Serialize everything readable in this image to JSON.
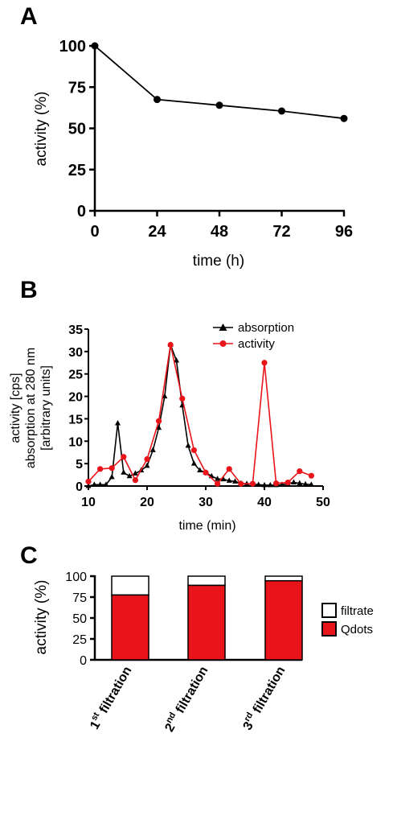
{
  "panels": {
    "a": {
      "letter": "A"
    },
    "b": {
      "letter": "B"
    },
    "c": {
      "letter": "C"
    }
  },
  "chart_data": [
    {
      "panel": "A",
      "type": "line",
      "xlabel": "time (h)",
      "ylabel": "activity (%)",
      "xlim": [
        0,
        96
      ],
      "ylim": [
        0,
        100
      ],
      "xticks": [
        0,
        24,
        48,
        72,
        96
      ],
      "yticks": [
        0,
        25,
        50,
        75,
        100
      ],
      "grid": false,
      "series": [
        {
          "x": [
            0,
            24,
            48,
            72,
            96
          ],
          "y": [
            100,
            67.5,
            64,
            60.5,
            56
          ],
          "color": "#000000",
          "marker": "circle"
        }
      ]
    },
    {
      "panel": "B",
      "type": "line",
      "xlabel": "time (min)",
      "ylabel_lines": [
        "activity [cps]",
        "absorption at 280 nm",
        "[arbitrary units]"
      ],
      "xlim": [
        10,
        50
      ],
      "ylim": [
        0,
        35
      ],
      "xticks": [
        10,
        20,
        30,
        40,
        50
      ],
      "yticks": [
        0,
        5,
        10,
        15,
        20,
        25,
        30,
        35
      ],
      "grid": false,
      "legend_position": "top-right",
      "series": [
        {
          "name": "absorption",
          "color": "#000000",
          "marker": "triangle",
          "x": [
            10,
            11,
            12,
            13,
            14,
            15,
            16,
            17,
            18,
            19,
            20,
            21,
            22,
            23,
            24,
            25,
            26,
            27,
            28,
            29,
            30,
            31,
            32,
            33,
            34,
            35,
            36,
            37,
            38,
            39,
            40,
            41,
            42,
            43,
            44,
            45,
            46,
            47,
            48
          ],
          "y": [
            0,
            0.3,
            0.3,
            0.3,
            2,
            14,
            3,
            2.2,
            2.8,
            3.5,
            4.5,
            8,
            13,
            20,
            31.5,
            28,
            18,
            9,
            5,
            3.5,
            3,
            2.2,
            1.6,
            1.5,
            1.2,
            1,
            0.6,
            0.5,
            0.4,
            0.3,
            0.2,
            0.2,
            0.2,
            0.3,
            0.5,
            0.8,
            0.6,
            0.4,
            0.3
          ]
        },
        {
          "name": "activity",
          "color": "#e8141a",
          "marker": "circle",
          "x": [
            10,
            12,
            14,
            16,
            18,
            20,
            22,
            24,
            26,
            28,
            30,
            32,
            34,
            36,
            38,
            40,
            42,
            44,
            46,
            48
          ],
          "y": [
            1,
            3.8,
            4,
            6.5,
            1.3,
            6,
            14.5,
            31.5,
            19.5,
            8,
            3,
            0.5,
            3.8,
            0.5,
            0.5,
            27.5,
            0.6,
            0.8,
            3.3,
            2.3
          ]
        }
      ]
    },
    {
      "panel": "C",
      "type": "bar",
      "stacked": true,
      "ylabel": "activity (%)",
      "ylim": [
        0,
        100
      ],
      "yticks": [
        0,
        25,
        50,
        75,
        100
      ],
      "grid": false,
      "legend_position": "right",
      "categories": [
        {
          "num": "1",
          "sup": "st",
          "label": " filtration"
        },
        {
          "num": "2",
          "sup": "nd",
          "label": " filtration"
        },
        {
          "num": "3",
          "sup": "rd",
          "label": " filtration"
        }
      ],
      "series": [
        {
          "name": "Qdots",
          "color": "#e8141a",
          "values": [
            77.5,
            89,
            94.5
          ]
        },
        {
          "name": "filtrate",
          "color": "#ffffff",
          "values": [
            22.5,
            11,
            5.5
          ]
        }
      ]
    }
  ]
}
